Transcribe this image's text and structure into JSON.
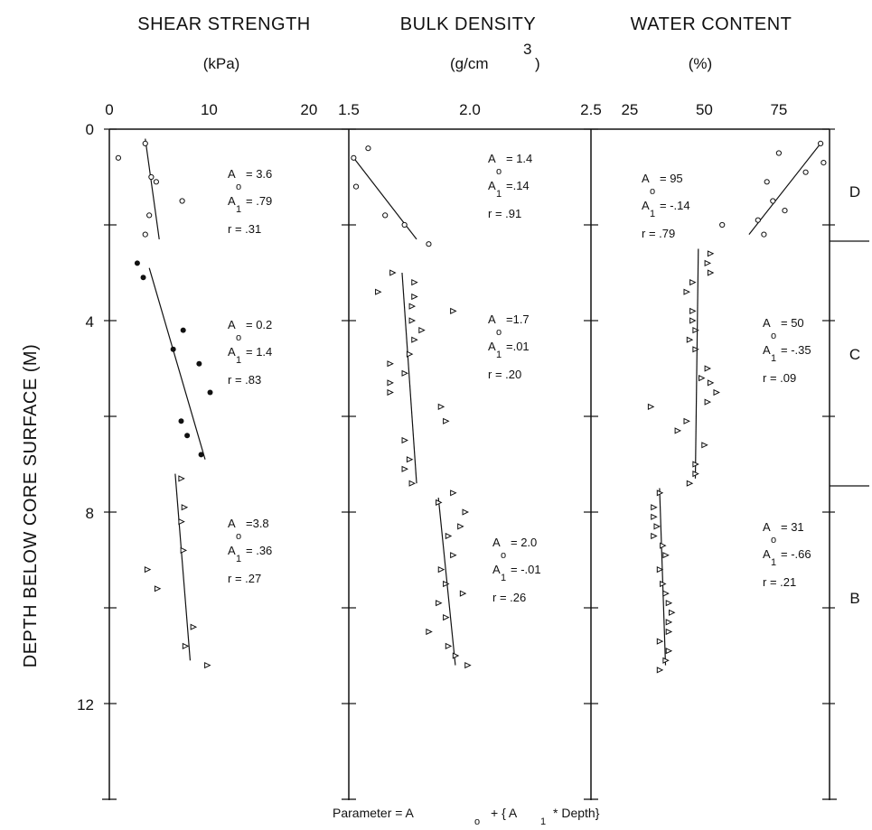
{
  "chart_data": {
    "type": "scatter",
    "ylabel": "DEPTH BELOW CORE SURFACE (M)",
    "y_range": [
      0,
      14
    ],
    "y_ticks": [
      "0",
      "4",
      "8",
      "12"
    ],
    "y_inverted": true,
    "panels": [
      {
        "title": "SHEAR STRENGTH",
        "unit_parts": [
          "(kPa)"
        ],
        "xlim": [
          0,
          24
        ],
        "x_ticks": [
          "0",
          "10",
          "20"
        ],
        "groups": [
          {
            "marker": "circle",
            "points": [
              [
                0.9,
                0.6
              ],
              [
                3.6,
                0.3
              ],
              [
                4.2,
                1.0
              ],
              [
                4.7,
                1.1
              ],
              [
                7.3,
                1.5
              ],
              [
                4.0,
                1.8
              ],
              [
                3.6,
                2.2
              ]
            ],
            "fit": [
              [
                3.6,
                0.2
              ],
              [
                5.0,
                2.3
              ]
            ],
            "ann": [
              "A",
              "o",
              "= 3.6",
              "A",
              "1",
              "= .79",
              "r  =  .31"
            ]
          },
          {
            "marker": "filled",
            "points": [
              [
                2.8,
                2.8
              ],
              [
                3.4,
                3.1
              ],
              [
                7.4,
                4.2
              ],
              [
                6.4,
                4.6
              ],
              [
                9.0,
                4.9
              ],
              [
                10.1,
                5.5
              ],
              [
                7.2,
                6.1
              ],
              [
                7.8,
                6.4
              ],
              [
                9.2,
                6.8
              ]
            ],
            "fit": [
              [
                4.0,
                2.9
              ],
              [
                9.6,
                6.9
              ]
            ],
            "ann": [
              "A",
              "o",
              "= 0.2",
              "A",
              "1",
              "= 1.4",
              "r  =  .83"
            ]
          },
          {
            "marker": "triangle",
            "points": [
              [
                7.2,
                7.3
              ],
              [
                7.5,
                7.9
              ],
              [
                7.2,
                8.2
              ],
              [
                7.4,
                8.8
              ],
              [
                3.8,
                9.2
              ],
              [
                4.8,
                9.6
              ],
              [
                8.4,
                10.4
              ],
              [
                7.6,
                10.8
              ],
              [
                9.8,
                11.2
              ]
            ],
            "fit": [
              [
                6.6,
                7.2
              ],
              [
                8.1,
                11.1
              ]
            ],
            "ann": [
              "A",
              "o",
              "=3.8",
              "A",
              "1",
              "= .36",
              "r  =  .27"
            ]
          }
        ]
      },
      {
        "title": "BULK DENSITY",
        "unit_parts": [
          "(g/cm",
          "3",
          ")"
        ],
        "xlim": [
          1.5,
          2.5
        ],
        "x_ticks": [
          "1.5",
          "2.0",
          "2.5"
        ],
        "groups": [
          {
            "marker": "circle",
            "points": [
              [
                1.58,
                0.4
              ],
              [
                1.52,
                0.6
              ],
              [
                1.53,
                1.2
              ],
              [
                1.65,
                1.8
              ],
              [
                1.73,
                2.0
              ],
              [
                1.83,
                2.4
              ]
            ],
            "fit": [
              [
                1.52,
                0.6
              ],
              [
                1.78,
                2.3
              ]
            ],
            "ann": [
              "A",
              "o",
              "= 1.4",
              "A",
              "1",
              "=.14",
              "r  = .91"
            ]
          },
          {
            "marker": "triangle",
            "points": [
              [
                1.68,
                3.0
              ],
              [
                1.62,
                3.4
              ],
              [
                1.77,
                3.2
              ],
              [
                1.77,
                3.5
              ],
              [
                1.76,
                3.7
              ],
              [
                1.76,
                4.0
              ],
              [
                1.8,
                4.2
              ],
              [
                1.77,
                4.4
              ],
              [
                1.93,
                3.8
              ],
              [
                1.75,
                4.7
              ],
              [
                1.67,
                4.9
              ],
              [
                1.67,
                5.3
              ],
              [
                1.67,
                5.5
              ],
              [
                1.73,
                5.1
              ],
              [
                1.88,
                5.8
              ],
              [
                1.9,
                6.1
              ],
              [
                1.73,
                6.5
              ],
              [
                1.75,
                6.9
              ],
              [
                1.73,
                7.1
              ],
              [
                1.76,
                7.4
              ]
            ],
            "fit": [
              [
                1.72,
                3.0
              ],
              [
                1.78,
                7.4
              ]
            ],
            "ann": [
              "A",
              "o",
              "=1.7",
              "A",
              "1",
              "=.01",
              "r  = .20"
            ]
          },
          {
            "marker": "triangle",
            "points": [
              [
                1.93,
                7.6
              ],
              [
                1.98,
                8.0
              ],
              [
                1.96,
                8.3
              ],
              [
                1.87,
                7.8
              ],
              [
                1.91,
                8.5
              ],
              [
                1.93,
                8.9
              ],
              [
                1.88,
                9.2
              ],
              [
                1.9,
                9.5
              ],
              [
                1.97,
                9.7
              ],
              [
                1.87,
                9.9
              ],
              [
                1.9,
                10.2
              ],
              [
                1.83,
                10.5
              ],
              [
                1.91,
                10.8
              ],
              [
                1.94,
                11.0
              ],
              [
                1.99,
                11.2
              ]
            ],
            "fit": [
              [
                1.87,
                7.7
              ],
              [
                1.94,
                11.2
              ]
            ],
            "ann": [
              "A",
              "o",
              "= 2.0",
              "A",
              "1",
              "= -.01",
              "r  =  .26"
            ]
          }
        ]
      },
      {
        "title": "WATER CONTENT",
        "unit_parts": [
          "(%)"
        ],
        "xlim": [
          12,
          92
        ],
        "x_ticks": [
          "25",
          "50",
          "75"
        ],
        "groups": [
          {
            "marker": "circle",
            "points": [
              [
                89,
                0.3
              ],
              [
                90,
                0.7
              ],
              [
                75,
                0.5
              ],
              [
                84,
                0.9
              ],
              [
                71,
                1.1
              ],
              [
                73,
                1.5
              ],
              [
                77,
                1.7
              ],
              [
                68,
                1.9
              ],
              [
                56,
                2.0
              ],
              [
                70,
                2.2
              ]
            ],
            "fit": [
              [
                65,
                2.2
              ],
              [
                89,
                0.3
              ]
            ],
            "ann": [
              "A",
              "o",
              "= 95",
              "A",
              "1",
              "= -.14",
              "r  =  .79"
            ]
          },
          {
            "marker": "triangle",
            "points": [
              [
                52,
                2.6
              ],
              [
                51,
                2.8
              ],
              [
                46,
                3.2
              ],
              [
                52,
                3.0
              ],
              [
                44,
                3.4
              ],
              [
                46,
                3.8
              ],
              [
                46,
                4.0
              ],
              [
                47,
                4.2
              ],
              [
                45,
                4.4
              ],
              [
                47,
                4.6
              ],
              [
                51,
                5.0
              ],
              [
                49,
                5.2
              ],
              [
                52,
                5.3
              ],
              [
                54,
                5.5
              ],
              [
                51,
                5.7
              ],
              [
                32,
                5.8
              ],
              [
                44,
                6.1
              ],
              [
                41,
                6.3
              ],
              [
                50,
                6.6
              ],
              [
                47,
                7.0
              ],
              [
                47,
                7.2
              ],
              [
                45,
                7.4
              ]
            ],
            "fit": [
              [
                48,
                2.5
              ],
              [
                47,
                7.3
              ]
            ],
            "ann": [
              "A",
              "o",
              "= 50",
              "A",
              "1",
              "= -.35",
              "r  =  .09"
            ]
          },
          {
            "marker": "triangle",
            "points": [
              [
                35,
                7.6
              ],
              [
                33,
                7.9
              ],
              [
                33,
                8.1
              ],
              [
                34,
                8.3
              ],
              [
                33,
                8.5
              ],
              [
                36,
                8.7
              ],
              [
                37,
                8.9
              ],
              [
                35,
                9.2
              ],
              [
                36,
                9.5
              ],
              [
                37,
                9.7
              ],
              [
                38,
                9.9
              ],
              [
                39,
                10.1
              ],
              [
                38,
                10.3
              ],
              [
                38,
                10.5
              ],
              [
                35,
                10.7
              ],
              [
                38,
                10.9
              ],
              [
                37,
                11.1
              ],
              [
                35,
                11.3
              ]
            ],
            "fit": [
              [
                35,
                7.5
              ],
              [
                37,
                11.2
              ]
            ],
            "ann": [
              "A",
              "o",
              "= 31",
              "A",
              "1",
              "= -.66",
              "r  =  .21"
            ]
          }
        ]
      }
    ],
    "zones": [
      "D",
      "C",
      "B"
    ],
    "formula": [
      "Parameter  =  A",
      "o",
      "+  { A",
      "1",
      "*  Depth}"
    ]
  }
}
